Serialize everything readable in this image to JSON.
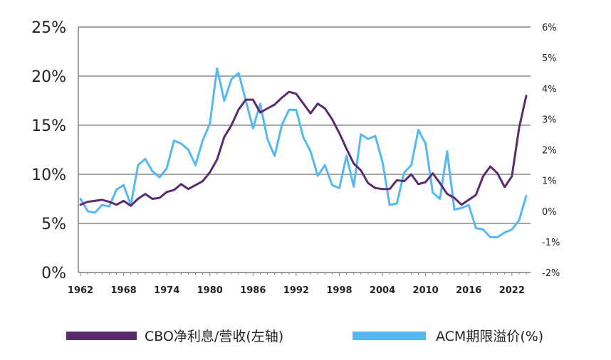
{
  "chart_data": {
    "type": "line",
    "x_ticks": [
      "1962",
      "1968",
      "1974",
      "1980",
      "1986",
      "1992",
      "1998",
      "2004",
      "2010",
      "2016",
      "2022"
    ],
    "y_left": {
      "ticks": [
        "0%",
        "5%",
        "10%",
        "15%",
        "20%",
        "25%"
      ],
      "range": [
        0,
        25
      ]
    },
    "y_right": {
      "ticks": [
        "-2%",
        "-1%",
        "0%",
        "1%",
        "2%",
        "3%",
        "4%",
        "5%",
        "6%"
      ],
      "range": [
        -2,
        6
      ]
    },
    "grid": "horizontal",
    "legend_position": "bottom",
    "series": [
      {
        "name": "CBO净利息/营收(左轴)",
        "axis": "left",
        "color": "#5a2b6e",
        "x": [
          1962,
          1963,
          1964,
          1965,
          1966,
          1967,
          1968,
          1969,
          1970,
          1971,
          1972,
          1973,
          1974,
          1975,
          1976,
          1977,
          1978,
          1979,
          1980,
          1981,
          1982,
          1983,
          1984,
          1985,
          1986,
          1987,
          1988,
          1989,
          1990,
          1991,
          1992,
          1993,
          1994,
          1995,
          1996,
          1997,
          1998,
          1999,
          2000,
          2001,
          2002,
          2003,
          2004,
          2005,
          2006,
          2007,
          2008,
          2009,
          2010,
          2011,
          2012,
          2013,
          2014,
          2015,
          2016,
          2017,
          2018,
          2019,
          2020,
          2021,
          2022,
          2023,
          2024
        ],
        "y": [
          6.9,
          7.2,
          7.3,
          7.4,
          7.2,
          6.9,
          7.3,
          6.8,
          7.5,
          8.0,
          7.5,
          7.6,
          8.2,
          8.4,
          9.0,
          8.5,
          8.9,
          9.3,
          10.2,
          11.5,
          13.8,
          15.0,
          16.6,
          17.6,
          17.6,
          16.3,
          16.7,
          17.1,
          17.8,
          18.4,
          18.2,
          17.2,
          16.2,
          17.2,
          16.7,
          15.6,
          14.2,
          12.6,
          11.1,
          10.4,
          9.1,
          8.6,
          8.5,
          8.5,
          9.4,
          9.3,
          10.0,
          9.0,
          9.2,
          10.1,
          9.1,
          8.0,
          7.6,
          6.9,
          7.4,
          7.9,
          9.8,
          10.8,
          10.1,
          8.7,
          9.8,
          14.7,
          18.0
        ]
      },
      {
        "name": "ACM期限溢价(%)",
        "axis": "right",
        "color": "#56b8f3",
        "x": [
          1962,
          1963,
          1964,
          1965,
          1966,
          1967,
          1968,
          1969,
          1970,
          1971,
          1972,
          1973,
          1974,
          1975,
          1976,
          1977,
          1978,
          1979,
          1980,
          1981,
          1982,
          1983,
          1984,
          1985,
          1986,
          1987,
          1988,
          1989,
          1990,
          1991,
          1992,
          1993,
          1994,
          1995,
          1996,
          1997,
          1998,
          1999,
          2000,
          2001,
          2002,
          2003,
          2004,
          2005,
          2006,
          2007,
          2008,
          2009,
          2010,
          2011,
          2012,
          2013,
          2014,
          2015,
          2016,
          2017,
          2018,
          2019,
          2020,
          2021,
          2022,
          2023,
          2024
        ],
        "y": [
          0.4,
          0.0,
          -0.05,
          0.2,
          0.15,
          0.7,
          0.85,
          0.2,
          1.5,
          1.7,
          1.3,
          1.1,
          1.4,
          2.3,
          2.2,
          2.0,
          1.5,
          2.3,
          2.85,
          4.65,
          3.6,
          4.3,
          4.5,
          3.6,
          2.7,
          3.5,
          2.35,
          1.8,
          2.8,
          3.3,
          3.3,
          2.4,
          1.95,
          1.15,
          1.5,
          0.85,
          0.75,
          1.8,
          0.8,
          2.5,
          2.35,
          2.45,
          1.6,
          0.2,
          0.25,
          1.25,
          1.5,
          2.65,
          2.2,
          0.6,
          0.4,
          1.95,
          0.05,
          0.1,
          0.2,
          -0.55,
          -0.6,
          -0.85,
          -0.85,
          -0.7,
          -0.6,
          -0.3,
          0.5
        ]
      }
    ]
  }
}
